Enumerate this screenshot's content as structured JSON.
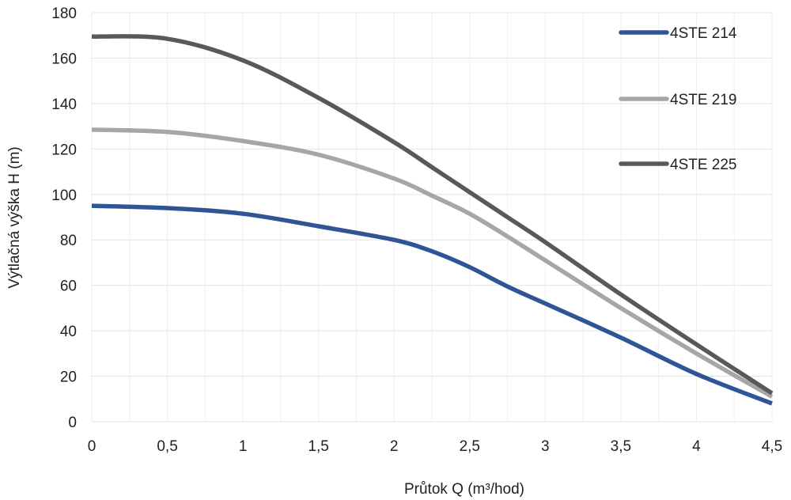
{
  "chart_data": {
    "type": "line",
    "title": "",
    "xlabel": "Průtok Q (m³/hod)",
    "ylabel": "Výtlačná výška H (m)",
    "xlim": [
      0,
      4.5
    ],
    "ylim": [
      0,
      180
    ],
    "x_ticks": [
      0,
      0.5,
      1,
      1.5,
      2,
      2.5,
      3,
      3.5,
      4,
      4.5
    ],
    "x_tick_labels": [
      "0",
      "0,5",
      "1",
      "1,5",
      "2",
      "2,5",
      "3",
      "3,5",
      "4",
      "4,5"
    ],
    "y_ticks": [
      0,
      20,
      40,
      60,
      80,
      100,
      120,
      140,
      160,
      180
    ],
    "y_tick_labels": [
      "0",
      "20",
      "40",
      "60",
      "80",
      "100",
      "120",
      "140",
      "160",
      "180"
    ],
    "x_minor_grid_step": 0.25,
    "grid": true,
    "legend_position": "top-right",
    "x": [
      0,
      0.5,
      1,
      1.5,
      2,
      2.25,
      2.5,
      2.75,
      3,
      3.5,
      4,
      4.5
    ],
    "series": [
      {
        "name": "4STE 214",
        "color": "#2f5597",
        "values": [
          95,
          94,
          91.5,
          86,
          80,
          75,
          68,
          59.5,
          52,
          37,
          21,
          8
        ]
      },
      {
        "name": "4STE 219",
        "color": "#a6a6a6",
        "values": [
          128.5,
          127.5,
          123.5,
          117.5,
          107,
          99.5,
          91.5,
          81.5,
          71,
          50,
          30,
          11
        ]
      },
      {
        "name": "4STE 225",
        "color": "#595959",
        "values": [
          169.5,
          168.5,
          159,
          142.5,
          123,
          112,
          101,
          90,
          79,
          56,
          34,
          12.5
        ]
      }
    ]
  }
}
